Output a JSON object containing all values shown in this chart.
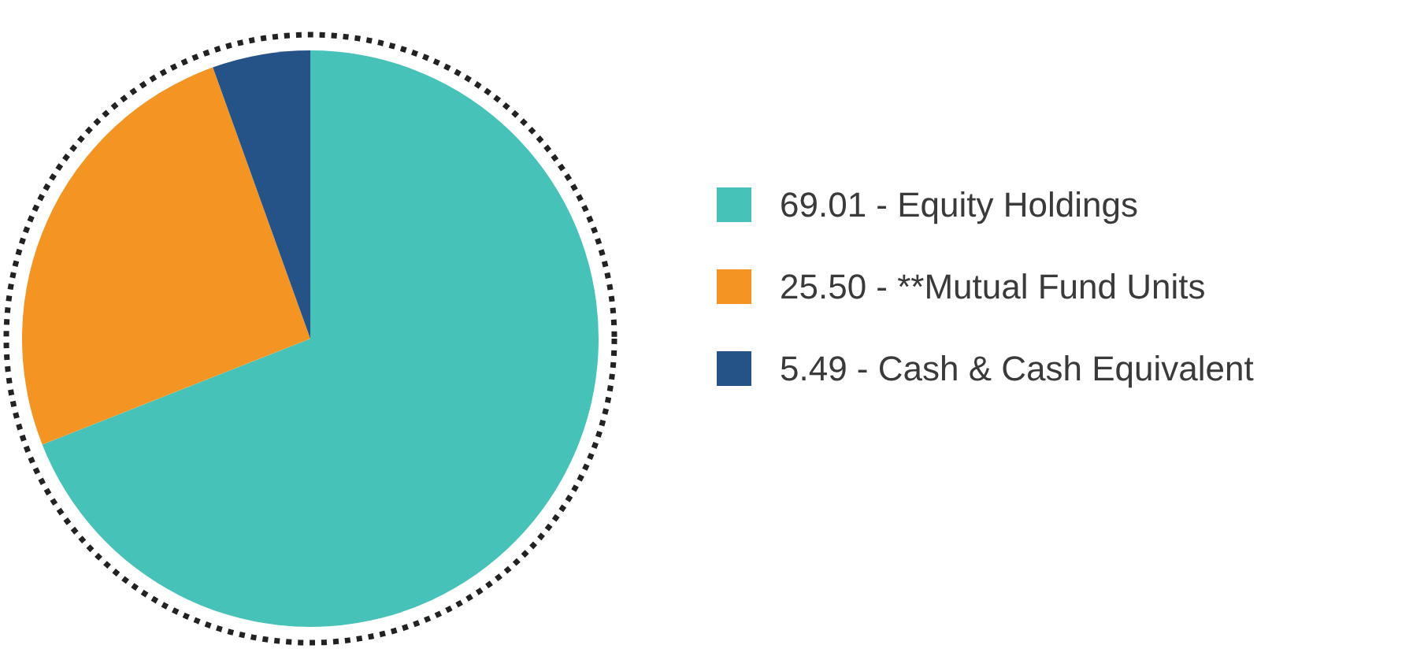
{
  "chart_data": {
    "type": "pie",
    "categories": [
      "Equity Holdings",
      "**Mutual Fund Units",
      "Cash & Cash Equivalent"
    ],
    "values": [
      69.01,
      25.5,
      5.49
    ],
    "value_labels": [
      "69.01",
      "25.50",
      "5.49"
    ],
    "colors": [
      "#47c2b9",
      "#f49422",
      "#255287"
    ],
    "legend": "right"
  }
}
